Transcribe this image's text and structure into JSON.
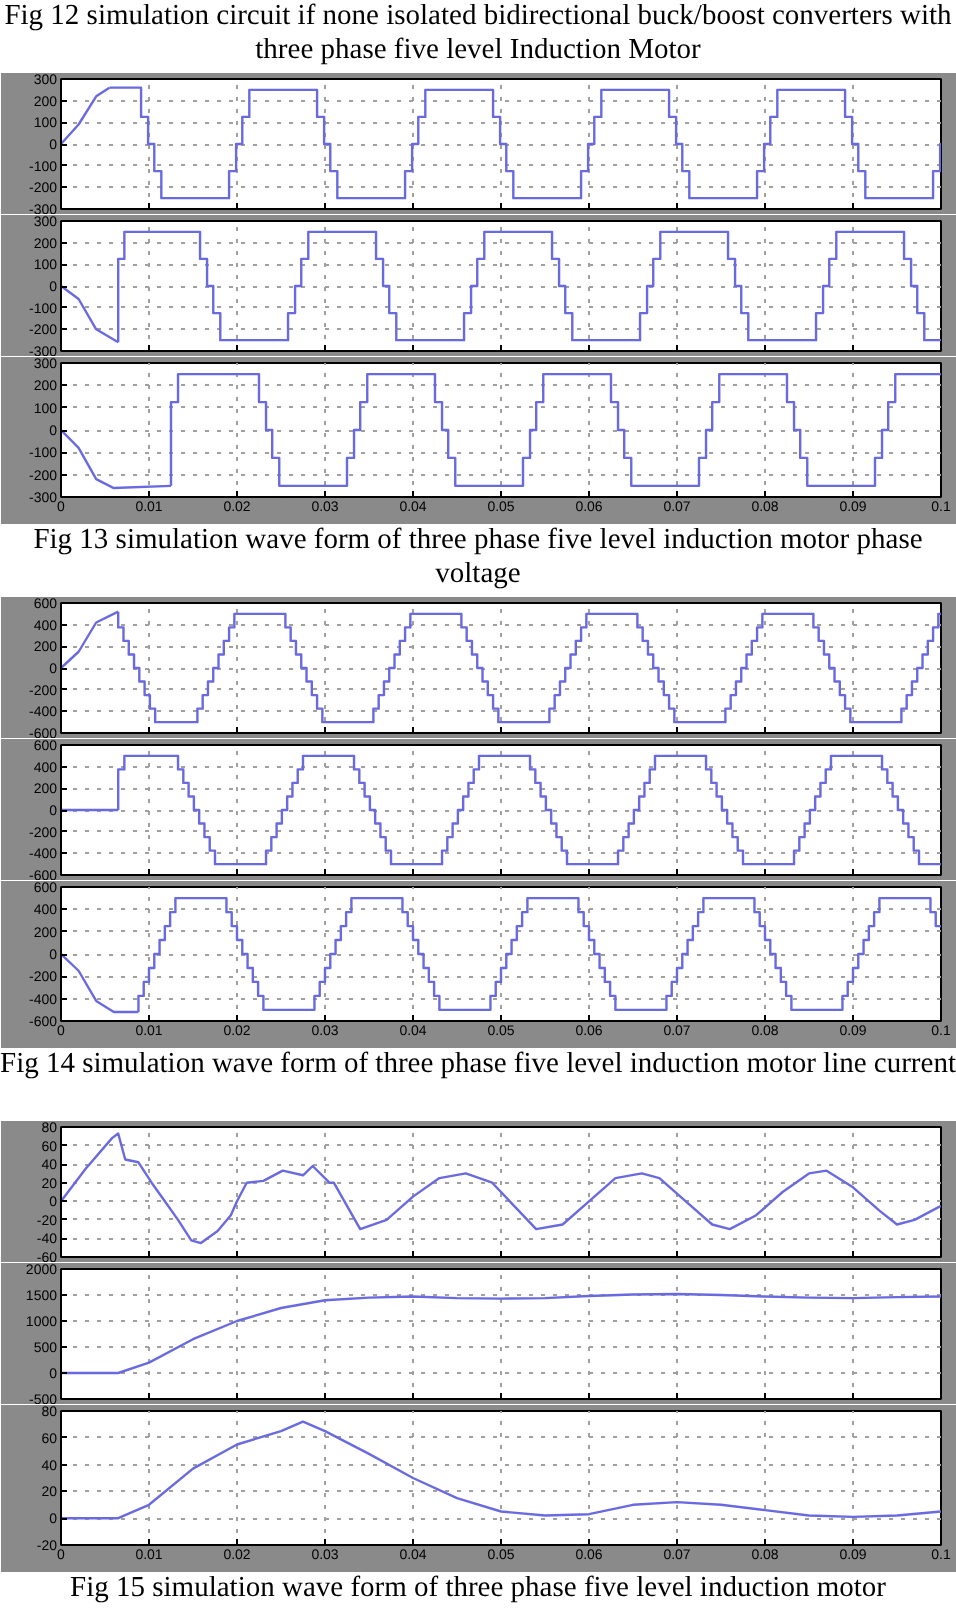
{
  "chart_data": [
    {
      "type": "line",
      "annotations": [
        "Fig 12 simulation circuit if none isolated bidirectional buck/boost converters with three phase five level Induction Motor"
      ],
      "xlim": [
        0,
        0.1
      ],
      "ylim": [
        -300,
        300
      ],
      "xticks": [
        0,
        0.01,
        0.02,
        0.03,
        0.04,
        0.05,
        0.06,
        0.07,
        0.08,
        0.09,
        0.1
      ],
      "yticks": [
        -300,
        -200,
        -100,
        0,
        100,
        200,
        300
      ],
      "grid": true,
      "tick_labels": "y",
      "series": [
        {
          "type": "line",
          "color": "#6a6ae0",
          "x": [
            0,
            0.002,
            0.004,
            0.0055
          ],
          "values": [
            0,
            90,
            220,
            260
          ]
        },
        {
          "type": "step",
          "color": "#6a6ae0",
          "x": [
            0.0055,
            0.0091,
            0.0099,
            0.0106,
            0.0114,
            0.0191,
            0.0199,
            0.0206,
            0.0214,
            0.0291,
            0.0299,
            0.0306,
            0.0314,
            0.0391,
            0.0399,
            0.0406,
            0.0414,
            0.0491,
            0.0499,
            0.0506,
            0.0514,
            0.0591,
            0.0599,
            0.0606,
            0.0614,
            0.0691,
            0.0699,
            0.0706,
            0.0714,
            0.0791,
            0.0799,
            0.0806,
            0.0814,
            0.0891,
            0.0899,
            0.0906,
            0.0914,
            0.0991,
            0.0999,
            0.1
          ],
          "values": [
            260,
            125,
            0,
            -125,
            -250,
            -125,
            0,
            125,
            250,
            125,
            0,
            -125,
            -250,
            -125,
            0,
            125,
            250,
            125,
            0,
            -125,
            -250,
            -125,
            0,
            125,
            250,
            125,
            0,
            -125,
            -250,
            -125,
            0,
            125,
            250,
            125,
            0,
            -125,
            -250,
            -125,
            0,
            0
          ]
        }
      ]
    },
    {
      "type": "line",
      "xlim": [
        0,
        0.1
      ],
      "ylim": [
        -300,
        300
      ],
      "xticks": [
        0,
        0.01,
        0.02,
        0.03,
        0.04,
        0.05,
        0.06,
        0.07,
        0.08,
        0.09,
        0.1
      ],
      "yticks": [
        -300,
        -200,
        -100,
        0,
        100,
        200,
        300
      ],
      "grid": true,
      "tick_labels": "y",
      "series": [
        {
          "type": "line",
          "color": "#6a6ae0",
          "x": [
            0,
            0.002,
            0.004,
            0.0065
          ],
          "values": [
            0,
            -60,
            -200,
            -260
          ]
        },
        {
          "type": "step",
          "color": "#6a6ae0",
          "x": [
            0.0065,
            0.0065,
            0.0072,
            0.0158,
            0.0166,
            0.0173,
            0.0181,
            0.0258,
            0.0266,
            0.0273,
            0.0281,
            0.0358,
            0.0366,
            0.0373,
            0.0381,
            0.0458,
            0.0466,
            0.0473,
            0.0481,
            0.0558,
            0.0566,
            0.0573,
            0.0581,
            0.0658,
            0.0666,
            0.0673,
            0.0681,
            0.0758,
            0.0766,
            0.0773,
            0.0781,
            0.0858,
            0.0866,
            0.0873,
            0.0881,
            0.0958,
            0.0966,
            0.0973,
            0.0981,
            0.1
          ],
          "values": [
            -260,
            125,
            250,
            125,
            0,
            -125,
            -250,
            -125,
            0,
            125,
            250,
            125,
            0,
            -125,
            -250,
            -125,
            0,
            125,
            250,
            125,
            0,
            -125,
            -250,
            -125,
            0,
            125,
            250,
            125,
            0,
            -125,
            -250,
            -125,
            0,
            125,
            250,
            125,
            0,
            -125,
            -250,
            -250
          ]
        }
      ]
    },
    {
      "type": "line",
      "annotations": [
        "Fig 13 simulation wave form of three phase five level induction motor phase voltage"
      ],
      "xlim": [
        0,
        0.1
      ],
      "ylim": [
        -300,
        300
      ],
      "xticks": [
        0,
        0.01,
        0.02,
        0.03,
        0.04,
        0.05,
        0.06,
        0.07,
        0.08,
        0.09,
        0.1
      ],
      "yticks": [
        -300,
        -200,
        -100,
        0,
        100,
        200,
        300
      ],
      "grid": true,
      "series": [
        {
          "type": "line",
          "color": "#6a6ae0",
          "x": [
            0,
            0.002,
            0.004,
            0.006,
            0.0125
          ],
          "values": [
            0,
            -80,
            -220,
            -260,
            -250
          ]
        },
        {
          "type": "step",
          "color": "#6a6ae0",
          "x": [
            0.0125,
            0.0125,
            0.0133,
            0.0225,
            0.0233,
            0.024,
            0.0248,
            0.0325,
            0.0333,
            0.034,
            0.0348,
            0.0425,
            0.0433,
            0.044,
            0.0448,
            0.0525,
            0.0533,
            0.054,
            0.0548,
            0.0625,
            0.0633,
            0.064,
            0.0648,
            0.0725,
            0.0733,
            0.074,
            0.0748,
            0.0825,
            0.0833,
            0.084,
            0.0848,
            0.0925,
            0.0933,
            0.094,
            0.0948,
            0.1
          ],
          "values": [
            -250,
            125,
            250,
            125,
            0,
            -125,
            -250,
            -125,
            0,
            125,
            250,
            125,
            0,
            -125,
            -250,
            -125,
            0,
            125,
            250,
            125,
            0,
            -125,
            -250,
            -125,
            0,
            125,
            250,
            125,
            0,
            -125,
            -250,
            -125,
            0,
            125,
            250,
            250
          ]
        }
      ]
    },
    {
      "type": "line",
      "xlim": [
        0,
        0.1
      ],
      "ylim": [
        -600,
        600
      ],
      "xticks": [
        0,
        0.01,
        0.02,
        0.03,
        0.04,
        0.05,
        0.06,
        0.07,
        0.08,
        0.09,
        0.1
      ],
      "yticks": [
        -600,
        -400,
        -200,
        0,
        200,
        400,
        600
      ],
      "grid": true,
      "tick_labels": "y",
      "series": [
        {
          "type": "line",
          "color": "#6a6ae0",
          "x": [
            0,
            0.002,
            0.004,
            0.0065
          ],
          "values": [
            0,
            150,
            420,
            520
          ]
        },
        {
          "type": "step",
          "color": "#6a6ae0",
          "x": [
            0.0065,
            0.0065,
            0.0071,
            0.0077,
            0.0083,
            0.0089,
            0.0095,
            0.0101,
            0.0107,
            0.0155,
            0.0161,
            0.0167,
            0.0173,
            0.0179,
            0.0185,
            0.0191,
            0.0197,
            0.0255,
            0.0261,
            0.0267,
            0.0273,
            0.0279,
            0.0285,
            0.0291,
            0.0297,
            0.0355,
            0.0361,
            0.0367,
            0.0373,
            0.0379,
            0.0385,
            0.0391,
            0.0397,
            0.0455,
            0.0461,
            0.0467,
            0.0473,
            0.0479,
            0.0485,
            0.0491,
            0.0497,
            0.0555,
            0.0561,
            0.0567,
            0.0573,
            0.0579,
            0.0585,
            0.0591,
            0.0597,
            0.0655,
            0.0661,
            0.0667,
            0.0673,
            0.0679,
            0.0685,
            0.0691,
            0.0697,
            0.0755,
            0.0761,
            0.0767,
            0.0773,
            0.0779,
            0.0785,
            0.0791,
            0.0797,
            0.0855,
            0.0861,
            0.0867,
            0.0873,
            0.0879,
            0.0885,
            0.0891,
            0.0897,
            0.0955,
            0.0961,
            0.0967,
            0.0973,
            0.0979,
            0.0985,
            0.0991,
            0.0997,
            0.1
          ],
          "values": [
            520,
            375,
            250,
            125,
            0,
            -125,
            -250,
            -375,
            -500,
            -375,
            -250,
            -125,
            0,
            125,
            250,
            375,
            500,
            375,
            250,
            125,
            0,
            -125,
            -250,
            -375,
            -500,
            -375,
            -250,
            -125,
            0,
            125,
            250,
            375,
            500,
            375,
            250,
            125,
            0,
            -125,
            -250,
            -375,
            -500,
            -375,
            -250,
            -125,
            0,
            125,
            250,
            375,
            500,
            375,
            250,
            125,
            0,
            -125,
            -250,
            -375,
            -500,
            -375,
            -250,
            -125,
            0,
            125,
            250,
            375,
            500,
            375,
            250,
            125,
            0,
            -125,
            -250,
            -375,
            -500,
            -375,
            -250,
            -125,
            0,
            125,
            250,
            375,
            500,
            500
          ]
        }
      ]
    },
    {
      "type": "line",
      "xlim": [
        0,
        0.1
      ],
      "ylim": [
        -600,
        600
      ],
      "xticks": [
        0,
        0.01,
        0.02,
        0.03,
        0.04,
        0.05,
        0.06,
        0.07,
        0.08,
        0.09,
        0.1
      ],
      "yticks": [
        -600,
        -400,
        -200,
        0,
        200,
        400,
        600
      ],
      "grid": true,
      "tick_labels": "y",
      "series": [
        {
          "type": "line",
          "color": "#6a6ae0",
          "x": [
            0,
            0.0065
          ],
          "values": [
            0,
            0
          ]
        },
        {
          "type": "step",
          "color": "#6a6ae0",
          "x": [
            0.0065,
            0.0065,
            0.0072,
            0.0133,
            0.0139,
            0.0145,
            0.0151,
            0.0157,
            0.0163,
            0.0169,
            0.0175,
            0.0233,
            0.0239,
            0.0245,
            0.0251,
            0.0257,
            0.0263,
            0.0269,
            0.0275,
            0.0333,
            0.0339,
            0.0345,
            0.0351,
            0.0357,
            0.0363,
            0.0369,
            0.0375,
            0.0433,
            0.0439,
            0.0445,
            0.0451,
            0.0457,
            0.0463,
            0.0469,
            0.0475,
            0.0533,
            0.0539,
            0.0545,
            0.0551,
            0.0557,
            0.0563,
            0.0569,
            0.0575,
            0.0633,
            0.0639,
            0.0645,
            0.0651,
            0.0657,
            0.0663,
            0.0669,
            0.0675,
            0.0733,
            0.0739,
            0.0745,
            0.0751,
            0.0757,
            0.0763,
            0.0769,
            0.0775,
            0.0833,
            0.0839,
            0.0845,
            0.0851,
            0.0857,
            0.0863,
            0.0869,
            0.0875,
            0.0933,
            0.0939,
            0.0945,
            0.0951,
            0.0957,
            0.0963,
            0.0969,
            0.0975,
            0.1
          ],
          "values": [
            0,
            375,
            500,
            375,
            250,
            125,
            0,
            -125,
            -250,
            -375,
            -500,
            -375,
            -250,
            -125,
            0,
            125,
            250,
            375,
            500,
            375,
            250,
            125,
            0,
            -125,
            -250,
            -375,
            -500,
            -375,
            -250,
            -125,
            0,
            125,
            250,
            375,
            500,
            375,
            250,
            125,
            0,
            -125,
            -250,
            -375,
            -500,
            -375,
            -250,
            -125,
            0,
            125,
            250,
            375,
            500,
            375,
            250,
            125,
            0,
            -125,
            -250,
            -375,
            -500,
            -375,
            -250,
            -125,
            0,
            125,
            250,
            375,
            500,
            375,
            250,
            125,
            0,
            -125,
            -250,
            -375,
            -500,
            -500
          ]
        }
      ]
    },
    {
      "type": "line",
      "annotations": [
        "Fig 14 simulation wave form of three phase five level induction motor line current"
      ],
      "xlim": [
        0,
        0.1
      ],
      "ylim": [
        -600,
        600
      ],
      "xticks": [
        0,
        0.01,
        0.02,
        0.03,
        0.04,
        0.05,
        0.06,
        0.07,
        0.08,
        0.09,
        0.1
      ],
      "yticks": [
        -600,
        -400,
        -200,
        0,
        200,
        400,
        600
      ],
      "grid": true,
      "series": [
        {
          "type": "line",
          "color": "#6a6ae0",
          "x": [
            0,
            0.002,
            0.004,
            0.006,
            0.0088
          ],
          "values": [
            0,
            -150,
            -420,
            -520,
            -520
          ]
        },
        {
          "type": "step",
          "color": "#6a6ae0",
          "x": [
            0.0088,
            0.0088,
            0.0094,
            0.01,
            0.0106,
            0.0112,
            0.0118,
            0.0124,
            0.013,
            0.0188,
            0.0194,
            0.02,
            0.0206,
            0.0212,
            0.0218,
            0.0224,
            0.023,
            0.0288,
            0.0294,
            0.03,
            0.0306,
            0.0312,
            0.0318,
            0.0324,
            0.033,
            0.0388,
            0.0394,
            0.04,
            0.0406,
            0.0412,
            0.0418,
            0.0424,
            0.043,
            0.0488,
            0.0494,
            0.05,
            0.0506,
            0.0512,
            0.0518,
            0.0524,
            0.053,
            0.0588,
            0.0594,
            0.06,
            0.0606,
            0.0612,
            0.0618,
            0.0624,
            0.063,
            0.0688,
            0.0694,
            0.07,
            0.0706,
            0.0712,
            0.0718,
            0.0724,
            0.073,
            0.0788,
            0.0794,
            0.08,
            0.0806,
            0.0812,
            0.0818,
            0.0824,
            0.083,
            0.0888,
            0.0894,
            0.09,
            0.0906,
            0.0912,
            0.0918,
            0.0924,
            0.093,
            0.0988,
            0.0994,
            0.1
          ],
          "values": [
            -520,
            -375,
            -250,
            -125,
            0,
            125,
            250,
            375,
            500,
            375,
            250,
            125,
            0,
            -125,
            -250,
            -375,
            -500,
            -375,
            -250,
            -125,
            0,
            125,
            250,
            375,
            500,
            375,
            250,
            125,
            0,
            -125,
            -250,
            -375,
            -500,
            -375,
            -250,
            -125,
            0,
            125,
            250,
            375,
            500,
            375,
            250,
            125,
            0,
            -125,
            -250,
            -375,
            -500,
            -375,
            -250,
            -125,
            0,
            125,
            250,
            375,
            500,
            375,
            250,
            125,
            0,
            -125,
            -250,
            -375,
            -500,
            -375,
            -250,
            -125,
            0,
            125,
            250,
            375,
            500,
            375,
            250,
            250
          ]
        }
      ]
    },
    {
      "type": "line",
      "xlim": [
        0,
        0.1
      ],
      "ylim": [
        -60,
        80
      ],
      "xticks": [
        0,
        0.01,
        0.02,
        0.03,
        0.04,
        0.05,
        0.06,
        0.07,
        0.08,
        0.09,
        0.1
      ],
      "yticks": [
        -60,
        -40,
        -20,
        0,
        20,
        40,
        60,
        80
      ],
      "grid": true,
      "tick_labels": "y",
      "series": [
        {
          "type": "line",
          "color": "#6a6ae0",
          "x": [
            0,
            0.0028,
            0.0058,
            0.0065,
            0.0073,
            0.0088,
            0.0103,
            0.0118,
            0.0133,
            0.0148,
            0.0159,
            0.0178,
            0.0193,
            0.02,
            0.0211,
            0.023,
            0.0252,
            0.0275,
            0.0286,
            0.0305,
            0.031,
            0.034,
            0.037,
            0.04,
            0.043,
            0.046,
            0.049,
            0.052,
            0.054,
            0.057,
            0.06,
            0.063,
            0.066,
            0.068,
            0.071,
            0.074,
            0.076,
            0.079,
            0.082,
            0.085,
            0.087,
            0.09,
            0.093,
            0.095,
            0.097,
            0.1
          ],
          "values": [
            0,
            35,
            68,
            73,
            45,
            42,
            20,
            0,
            -20,
            -42,
            -45,
            -32,
            -15,
            0,
            20,
            22,
            33,
            28,
            38,
            20,
            20,
            -30,
            -20,
            5,
            25,
            30,
            20,
            -10,
            -30,
            -25,
            0,
            25,
            30,
            25,
            0,
            -25,
            -30,
            -15,
            10,
            30,
            33,
            15,
            -10,
            -25,
            -20,
            -5
          ]
        }
      ]
    },
    {
      "type": "line",
      "xlim": [
        0,
        0.1
      ],
      "ylim": [
        -500,
        2000
      ],
      "xticks": [
        0,
        0.01,
        0.02,
        0.03,
        0.04,
        0.05,
        0.06,
        0.07,
        0.08,
        0.09,
        0.1
      ],
      "yticks": [
        -500,
        0,
        500,
        1000,
        1500,
        2000
      ],
      "grid": true,
      "tick_labels": "y",
      "series": [
        {
          "type": "line",
          "color": "#6a6ae0",
          "x": [
            0,
            0.0065,
            0.01,
            0.015,
            0.02,
            0.025,
            0.03,
            0.035,
            0.04,
            0.045,
            0.05,
            0.055,
            0.06,
            0.065,
            0.07,
            0.075,
            0.08,
            0.085,
            0.09,
            0.095,
            0.1
          ],
          "values": [
            0,
            0,
            200,
            650,
            1000,
            1250,
            1400,
            1450,
            1470,
            1440,
            1430,
            1440,
            1480,
            1510,
            1520,
            1500,
            1470,
            1450,
            1440,
            1460,
            1470
          ]
        }
      ]
    },
    {
      "type": "line",
      "annotations": [
        "Fig 15 simulation wave form of three phase five level induction motor"
      ],
      "xlim": [
        0,
        0.1
      ],
      "ylim": [
        -20,
        80
      ],
      "xticks": [
        0,
        0.01,
        0.02,
        0.03,
        0.04,
        0.05,
        0.06,
        0.07,
        0.08,
        0.09,
        0.1
      ],
      "yticks": [
        -20,
        0,
        20,
        40,
        60,
        80
      ],
      "grid": true,
      "series": [
        {
          "type": "line",
          "color": "#6a6ae0",
          "x": [
            0,
            0.0065,
            0.01,
            0.015,
            0.02,
            0.025,
            0.0275,
            0.03,
            0.035,
            0.04,
            0.045,
            0.05,
            0.055,
            0.06,
            0.065,
            0.07,
            0.075,
            0.08,
            0.085,
            0.09,
            0.095,
            0.1
          ],
          "values": [
            0,
            0,
            10,
            37,
            55,
            65,
            72,
            65,
            48,
            30,
            15,
            5,
            2,
            3,
            10,
            12,
            10,
            6,
            2,
            1,
            2,
            5
          ]
        }
      ]
    }
  ]
}
